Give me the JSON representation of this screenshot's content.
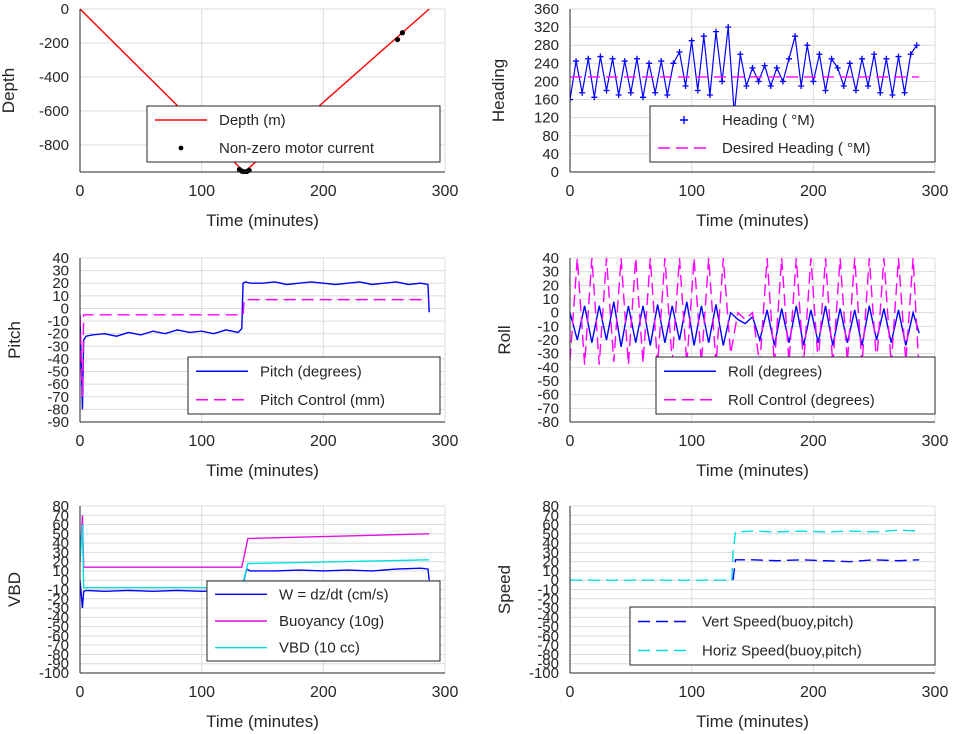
{
  "chart_data": [
    {
      "id": "depth",
      "type": "line",
      "xlabel": "Time (minutes)",
      "ylabel": "Depth",
      "xlim": [
        0,
        300
      ],
      "ylim": [
        -960,
        0
      ],
      "xticks": [
        0,
        100,
        200,
        300
      ],
      "yticks": [
        0,
        -200,
        -400,
        -600,
        -800
      ],
      "grid": true,
      "legend": "lower-center",
      "series": [
        {
          "name": "Depth (m)",
          "style": "solid",
          "color": "#ff0000",
          "x": [
            0,
            135,
            287
          ],
          "y": [
            0,
            -960,
            0
          ]
        },
        {
          "name": "Non-zero motor current",
          "style": "dots",
          "color": "#000000",
          "x": [
            131,
            133,
            135,
            137,
            139,
            261,
            265
          ],
          "y": [
            -945,
            -955,
            -960,
            -958,
            -950,
            -180,
            -140
          ]
        }
      ]
    },
    {
      "id": "heading",
      "type": "line",
      "xlabel": "Time (minutes)",
      "ylabel": "Heading",
      "xlim": [
        0,
        300
      ],
      "ylim": [
        0,
        360
      ],
      "xticks": [
        0,
        100,
        200,
        300
      ],
      "yticks": [
        0,
        40,
        80,
        120,
        160,
        200,
        240,
        280,
        320,
        360
      ],
      "grid": true,
      "legend": "lower-right",
      "series": [
        {
          "name": "Heading ( °M)",
          "style": "plus",
          "color": "#0000ff",
          "x": [
            0,
            5,
            10,
            15,
            20,
            25,
            30,
            35,
            40,
            45,
            50,
            55,
            60,
            65,
            70,
            75,
            80,
            85,
            90,
            95,
            100,
            105,
            110,
            115,
            120,
            125,
            130,
            135,
            140,
            145,
            150,
            155,
            160,
            165,
            170,
            175,
            180,
            185,
            190,
            195,
            200,
            205,
            210,
            215,
            220,
            225,
            230,
            235,
            240,
            245,
            250,
            255,
            260,
            265,
            270,
            275,
            280,
            285
          ],
          "y": [
            160,
            245,
            175,
            250,
            165,
            255,
            180,
            250,
            170,
            245,
            175,
            250,
            165,
            240,
            175,
            245,
            170,
            240,
            265,
            190,
            290,
            180,
            300,
            170,
            310,
            200,
            320,
            130,
            260,
            190,
            230,
            200,
            235,
            190,
            230,
            200,
            250,
            300,
            190,
            280,
            200,
            260,
            180,
            250,
            230,
            190,
            240,
            180,
            250,
            190,
            260,
            175,
            250,
            170,
            255,
            175,
            260,
            280
          ]
        },
        {
          "name": "Desired Heading ( °M)",
          "style": "dash",
          "color": "#ff00ff",
          "x": [
            0,
            287
          ],
          "y": [
            210,
            210
          ]
        }
      ]
    },
    {
      "id": "pitch",
      "type": "line",
      "xlabel": "Time (minutes)",
      "ylabel": "Pitch",
      "xlim": [
        0,
        300
      ],
      "ylim": [
        -90,
        40
      ],
      "xticks": [
        0,
        100,
        200,
        300
      ],
      "yticks": [
        40,
        30,
        20,
        10,
        0,
        -10,
        -20,
        -30,
        -40,
        -50,
        -60,
        -70,
        -80,
        -90
      ],
      "grid": true,
      "legend": "lower-right",
      "series": [
        {
          "name": "Pitch (degrees)",
          "style": "solid",
          "color": "#0000ff",
          "x": [
            0,
            2,
            3,
            5,
            10,
            20,
            30,
            40,
            50,
            60,
            70,
            80,
            90,
            100,
            110,
            120,
            130,
            133,
            134,
            136,
            140,
            150,
            160,
            170,
            180,
            190,
            200,
            210,
            220,
            230,
            240,
            250,
            260,
            270,
            280,
            286,
            287
          ],
          "y": [
            -5,
            -80,
            -25,
            -22,
            -21,
            -20,
            -22,
            -19,
            -21,
            -18,
            -20,
            -17,
            -19,
            -18,
            -20,
            -17,
            -19,
            -16,
            20,
            21,
            20,
            20,
            21,
            19,
            20,
            21,
            20,
            19,
            20,
            21,
            19,
            20,
            21,
            19,
            20,
            19,
            -3
          ]
        },
        {
          "name": "Pitch Control (mm)",
          "style": "dash",
          "color": "#ff00ff",
          "x": [
            0,
            2,
            3,
            134,
            135,
            287
          ],
          "y": [
            -5,
            -70,
            -5,
            -5,
            7,
            7
          ]
        }
      ]
    },
    {
      "id": "roll",
      "type": "line",
      "xlabel": "Time (minutes)",
      "ylabel": "Roll",
      "xlim": [
        0,
        300
      ],
      "ylim": [
        -80,
        40
      ],
      "xticks": [
        0,
        100,
        200,
        300
      ],
      "yticks": [
        40,
        30,
        20,
        10,
        0,
        -10,
        -20,
        -30,
        -40,
        -50,
        -60,
        -70,
        -80
      ],
      "grid": true,
      "legend": "lower-right",
      "series": [
        {
          "name": "Roll (degrees)",
          "style": "solid",
          "color": "#0000ff",
          "x": [
            0,
            6,
            12,
            18,
            24,
            30,
            36,
            42,
            48,
            54,
            60,
            66,
            72,
            78,
            84,
            90,
            96,
            102,
            108,
            114,
            120,
            126,
            132,
            138,
            144,
            150,
            156,
            162,
            168,
            174,
            180,
            186,
            192,
            198,
            204,
            210,
            216,
            222,
            228,
            234,
            240,
            246,
            252,
            258,
            264,
            270,
            276,
            282,
            287
          ],
          "y": [
            0,
            -20,
            5,
            -22,
            5,
            -20,
            8,
            -25,
            5,
            -22,
            5,
            -24,
            6,
            -22,
            5,
            -20,
            8,
            -24,
            5,
            -22,
            6,
            -24,
            0,
            -5,
            -8,
            -3,
            -20,
            2,
            -24,
            3,
            -22,
            5,
            -24,
            2,
            -22,
            5,
            -24,
            3,
            -22,
            2,
            -24,
            5,
            -20,
            3,
            -22,
            2,
            -24,
            0,
            -15
          ]
        },
        {
          "name": "Roll Control (degrees)",
          "style": "dash",
          "color": "#ff00ff",
          "x": [
            0,
            6,
            12,
            18,
            24,
            30,
            36,
            42,
            48,
            54,
            60,
            66,
            72,
            78,
            84,
            90,
            96,
            102,
            108,
            114,
            120,
            126,
            132,
            138,
            144,
            150,
            156,
            162,
            168,
            174,
            180,
            186,
            192,
            198,
            204,
            210,
            216,
            222,
            228,
            234,
            240,
            246,
            252,
            258,
            264,
            270,
            276,
            282,
            287
          ],
          "y": [
            -35,
            40,
            -38,
            40,
            -38,
            40,
            -36,
            40,
            -38,
            40,
            -37,
            40,
            -38,
            40,
            -36,
            40,
            -38,
            40,
            -37,
            40,
            -38,
            40,
            -30,
            0,
            -5,
            0,
            -38,
            40,
            -38,
            40,
            -36,
            40,
            -38,
            40,
            -37,
            40,
            -38,
            40,
            -36,
            40,
            -38,
            40,
            -37,
            40,
            -38,
            40,
            -36,
            40,
            -45
          ]
        }
      ]
    },
    {
      "id": "vbd",
      "type": "line",
      "xlabel": "Time (minutes)",
      "ylabel": "VBD",
      "xlim": [
        0,
        300
      ],
      "ylim": [
        -100,
        80
      ],
      "xticks": [
        0,
        100,
        200,
        300
      ],
      "yticks": [
        80,
        70,
        60,
        50,
        40,
        30,
        20,
        10,
        0,
        -10,
        -20,
        -30,
        -40,
        -50,
        -60,
        -70,
        -80,
        -90,
        -100
      ],
      "grid": true,
      "legend": "lower-right",
      "series": [
        {
          "name": "W = dz/dt (cm/s)",
          "style": "solid",
          "color": "#0000ff",
          "x": [
            0,
            2,
            3,
            5,
            20,
            40,
            60,
            80,
            100,
            120,
            133,
            137,
            140,
            160,
            180,
            200,
            220,
            240,
            260,
            280,
            286,
            287
          ],
          "y": [
            0,
            -30,
            -12,
            -11,
            -12,
            -11,
            -12,
            -11,
            -12,
            -11,
            -10,
            12,
            10,
            10,
            11,
            10,
            11,
            10,
            12,
            13,
            12,
            0
          ]
        },
        {
          "name": "Buoyancy (10g)",
          "style": "solid",
          "color": "#e010e0",
          "x": [
            0,
            2,
            3,
            133,
            138,
            287
          ],
          "y": [
            20,
            70,
            14,
            14,
            45,
            50
          ]
        },
        {
          "name": "VBD (10 cc)",
          "style": "solid",
          "color": "#00e0e0",
          "x": [
            0,
            2,
            3,
            133,
            138,
            287
          ],
          "y": [
            20,
            60,
            -8,
            -8,
            18,
            22
          ]
        }
      ]
    },
    {
      "id": "speed",
      "type": "line",
      "xlabel": "Time (minutes)",
      "ylabel": "Speed",
      "xlim": [
        0,
        300
      ],
      "ylim": [
        -100,
        80
      ],
      "xticks": [
        0,
        100,
        200,
        300
      ],
      "yticks": [
        80,
        70,
        60,
        50,
        40,
        30,
        20,
        10,
        0,
        -10,
        -20,
        -30,
        -40,
        -50,
        -60,
        -70,
        -80,
        -90,
        -100
      ],
      "grid": true,
      "legend": "lower-right",
      "series": [
        {
          "name": "Vert Speed(buoy,pitch)",
          "style": "dash",
          "color": "#0000ff",
          "x": [
            134,
            136,
            150,
            170,
            190,
            210,
            230,
            250,
            270,
            287
          ],
          "y": [
            0,
            22,
            22,
            21,
            22,
            21,
            20,
            22,
            21,
            22
          ]
        },
        {
          "name": "Horiz Speed(buoy,pitch)",
          "style": "dash",
          "color": "#00e0e0",
          "x": [
            0,
            133,
            134,
            136,
            150,
            170,
            190,
            210,
            230,
            250,
            270,
            287
          ],
          "y": [
            0,
            0,
            30,
            52,
            53,
            52,
            53,
            52,
            53,
            52,
            54,
            53
          ]
        }
      ]
    }
  ]
}
